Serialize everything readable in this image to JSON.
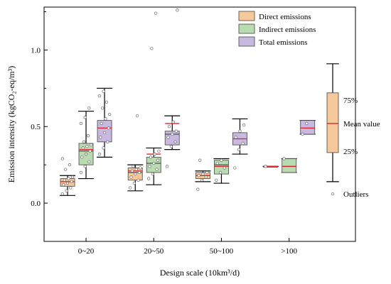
{
  "chart_data": {
    "type": "box",
    "xlabel": "Design scale (10km³/d)",
    "ylabel": "Emission intensity (kgCO₂-eq/m³)",
    "ylim": [
      -0.25,
      1.28
    ],
    "yticks": [
      0.0,
      0.5,
      1.0
    ],
    "ytick_labels": [
      "0.0",
      "0.5",
      "1.0"
    ],
    "categories": [
      "0~20",
      "20~50",
      "50~100",
      ">100"
    ],
    "grid": false,
    "legend": {
      "placement": "top-right"
    },
    "series": [
      {
        "name": "Direct emissions",
        "color": "#f7c89a",
        "boxes": [
          {
            "min": 0.05,
            "q1": 0.11,
            "median": 0.14,
            "q3": 0.16,
            "max": 0.18,
            "mean": 0.14,
            "points": [
              0.06,
              0.08,
              0.1,
              0.12,
              0.13,
              0.14,
              0.15,
              0.16,
              0.17,
              0.22,
              0.25,
              0.29
            ]
          },
          {
            "min": 0.08,
            "q1": 0.15,
            "median": 0.2,
            "q3": 0.23,
            "max": 0.25,
            "mean": 0.21,
            "points": [
              0.1,
              0.13,
              0.15,
              0.17,
              0.19,
              0.2,
              0.21,
              0.22,
              0.23,
              0.24,
              0.57
            ]
          },
          {
            "min": 0.14,
            "q1": 0.16,
            "median": 0.18,
            "q3": 0.2,
            "max": 0.21,
            "mean": 0.18,
            "points": [
              0.09,
              0.15,
              0.17,
              0.18,
              0.19,
              0.2,
              0.28
            ]
          },
          {
            "min": 0.24,
            "q1": 0.24,
            "median": 0.24,
            "q3": 0.24,
            "max": 0.24,
            "mean": 0.24,
            "points": [
              0.24
            ]
          }
        ]
      },
      {
        "name": "Indirect emissions",
        "color": "#b8dbb0",
        "boxes": [
          {
            "min": 0.16,
            "q1": 0.25,
            "median": 0.34,
            "q3": 0.39,
            "max": 0.6,
            "mean": 0.35,
            "points": [
              0.2,
              0.24,
              0.27,
              0.3,
              0.32,
              0.34,
              0.36,
              0.37,
              0.38,
              0.4,
              0.44,
              0.52,
              0.56,
              0.62
            ]
          },
          {
            "min": 0.12,
            "q1": 0.2,
            "median": 0.26,
            "q3": 0.3,
            "max": 0.36,
            "mean": 0.32,
            "points": [
              0.16,
              0.19,
              0.22,
              0.24,
              0.26,
              0.28,
              0.3,
              0.32,
              0.34,
              1.01,
              1.24
            ]
          },
          {
            "min": 0.13,
            "q1": 0.19,
            "median": 0.25,
            "q3": 0.28,
            "max": 0.29,
            "mean": 0.24,
            "points": [
              0.15,
              0.2,
              0.23,
              0.26,
              0.28
            ]
          },
          {
            "min": 0.2,
            "q1": 0.2,
            "median": 0.24,
            "q3": 0.29,
            "max": 0.29,
            "mean": 0.24,
            "points": [
              0.29
            ]
          }
        ]
      },
      {
        "name": "Total emissions",
        "color": "#c9b9e0",
        "boxes": [
          {
            "min": 0.3,
            "q1": 0.4,
            "median": 0.49,
            "q3": 0.54,
            "max": 0.75,
            "mean": 0.49,
            "points": [
              0.32,
              0.36,
              0.4,
              0.43,
              0.46,
              0.49,
              0.52,
              0.55,
              0.58,
              0.62,
              0.66,
              0.7,
              0.73
            ]
          },
          {
            "min": 0.35,
            "q1": 0.38,
            "median": 0.45,
            "q3": 0.47,
            "max": 0.57,
            "mean": 0.52,
            "points": [
              0.24,
              0.37,
              0.4,
              0.43,
              0.45,
              0.47,
              0.5,
              0.53,
              1.26
            ]
          },
          {
            "min": 0.32,
            "q1": 0.38,
            "median": 0.42,
            "q3": 0.46,
            "max": 0.55,
            "mean": 0.42,
            "points": [
              0.23,
              0.35,
              0.39,
              0.43,
              0.47,
              0.51
            ]
          },
          {
            "min": 0.45,
            "q1": 0.45,
            "median": 0.49,
            "q3": 0.54,
            "max": 0.54,
            "mean": 0.49,
            "points": [
              0.45,
              0.52
            ]
          }
        ]
      }
    ],
    "key": {
      "label_q3": "75%",
      "label_mean": "Mean value",
      "label_q1": "25%",
      "label_outliers": "Outliers",
      "box": {
        "min": 0.14,
        "q1": 0.33,
        "median": 0.52,
        "q3": 0.72,
        "max": 0.91,
        "mean": 0.52
      },
      "outlier": 0.06,
      "color": "#f7c89a"
    },
    "mean_line_color": "#e8212a"
  }
}
